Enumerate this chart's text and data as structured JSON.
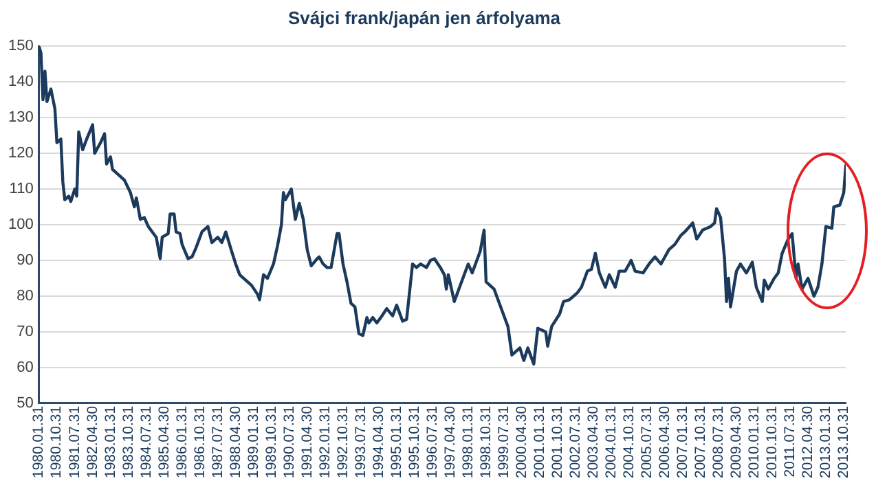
{
  "chart_data": {
    "type": "line",
    "title": "Svájci frank/japán jen árfolyama",
    "series": [
      {
        "color": "#1b3a5c",
        "x": [
          "1980-01",
          "1980-02",
          "1980-03",
          "1980-04",
          "1980-05",
          "1980-07",
          "1980-09",
          "1980-10",
          "1980-12",
          "1981-01",
          "1981-02",
          "1981-04",
          "1981-05",
          "1981-07",
          "1981-08",
          "1981-09",
          "1981-11",
          "1982-01",
          "1982-04",
          "1982-05",
          "1982-08",
          "1982-10",
          "1982-11",
          "1983-01",
          "1983-02",
          "1983-05",
          "1983-08",
          "1983-11",
          "1984-01",
          "1984-02",
          "1984-04",
          "1984-06",
          "1984-08",
          "1984-10",
          "1984-12",
          "1985-02",
          "1985-03",
          "1985-06",
          "1985-07",
          "1985-09",
          "1985-10",
          "1985-12",
          "1986-01",
          "1986-04",
          "1986-06",
          "1986-08",
          "1986-11",
          "1987-02",
          "1987-04",
          "1987-07",
          "1987-09",
          "1987-11",
          "1988-02",
          "1988-04",
          "1988-06",
          "1988-09",
          "1988-12",
          "1989-03",
          "1989-04",
          "1989-06",
          "1989-08",
          "1989-11",
          "1990-01",
          "1990-03",
          "1990-04",
          "1990-05",
          "1990-08",
          "1990-10",
          "1990-12",
          "1991-02",
          "1991-04",
          "1991-06",
          "1991-09",
          "1991-10",
          "1991-12",
          "1992-02",
          "1992-04",
          "1992-07",
          "1992-08",
          "1992-10",
          "1992-12",
          "1993-02",
          "1993-04",
          "1993-06",
          "1993-08",
          "1993-10",
          "1993-11",
          "1994-01",
          "1994-03",
          "1994-05",
          "1994-08",
          "1994-11",
          "1995-01",
          "1995-04",
          "1995-06",
          "1995-09",
          "1995-11",
          "1996-01",
          "1996-04",
          "1996-06",
          "1996-08",
          "1996-11",
          "1997-01",
          "1997-02",
          "1997-03",
          "1997-06",
          "1997-10",
          "1998-01",
          "1998-03",
          "1998-07",
          "1998-09",
          "1998-10",
          "1999-02",
          "1999-05",
          "1999-09",
          "1999-11",
          "2000-03",
          "2000-05",
          "2000-07",
          "2000-10",
          "2000-12",
          "2001-04",
          "2001-05",
          "2001-07",
          "2001-11",
          "2002-01",
          "2002-04",
          "2002-08",
          "2002-10",
          "2003-01",
          "2003-03",
          "2003-05",
          "2003-07",
          "2003-10",
          "2003-12",
          "2004-03",
          "2004-05",
          "2004-08",
          "2004-11",
          "2005-01",
          "2005-05",
          "2005-08",
          "2005-11",
          "2006-02",
          "2006-06",
          "2006-09",
          "2006-12",
          "2007-02",
          "2007-06",
          "2007-08",
          "2007-11",
          "2008-03",
          "2008-05",
          "2008-06",
          "2008-08",
          "2008-10",
          "2008-11",
          "2008-12",
          "2009-01",
          "2009-04",
          "2009-06",
          "2009-09",
          "2009-12",
          "2010-02",
          "2010-05",
          "2010-06",
          "2010-08",
          "2010-11",
          "2011-01",
          "2011-03",
          "2011-06",
          "2011-08",
          "2011-10",
          "2011-11",
          "2012-01",
          "2012-04",
          "2012-07",
          "2012-09",
          "2012-11",
          "2013-01",
          "2013-04",
          "2013-05",
          "2013-08",
          "2013-10",
          "2013-11"
        ],
        "values": [
          150,
          148,
          135,
          143,
          134.5,
          138,
          132.5,
          123,
          124,
          112,
          107,
          108,
          106.5,
          110,
          108,
          126,
          121,
          124,
          128,
          120,
          123,
          125.5,
          117,
          119,
          115.5,
          114,
          112.5,
          109,
          105,
          107.5,
          101.5,
          102,
          99.5,
          98,
          96.5,
          90.5,
          96.5,
          97.5,
          103,
          103,
          98,
          97.5,
          94.5,
          90.5,
          91,
          93.5,
          98,
          99.5,
          95,
          96.5,
          95,
          98,
          92.5,
          89,
          86,
          84.5,
          83,
          80.5,
          79,
          86,
          85,
          89,
          94,
          100,
          109,
          107,
          110,
          101.5,
          106,
          101.5,
          93,
          88.5,
          90.5,
          91,
          89,
          88,
          88,
          97.5,
          97.5,
          89,
          84,
          78,
          77,
          69.5,
          69,
          74,
          72.5,
          74,
          72.5,
          74,
          76.5,
          74.5,
          77.5,
          73,
          73.5,
          89,
          88,
          89,
          88,
          90,
          90.5,
          88,
          86,
          82,
          86,
          78.5,
          84.5,
          89,
          86.5,
          92.5,
          98.5,
          84,
          82,
          77.5,
          71.5,
          63.5,
          65.5,
          62,
          65.5,
          61,
          71,
          70,
          66,
          71.5,
          75,
          78.5,
          79,
          81,
          82.5,
          87,
          87.5,
          92,
          86.5,
          82.5,
          86,
          82.5,
          87,
          87,
          90,
          87,
          86.5,
          89,
          91,
          89,
          93,
          94.5,
          97,
          98,
          100.5,
          96,
          98.5,
          99.5,
          100.5,
          104.5,
          102,
          90.5,
          78.5,
          85,
          77,
          87,
          89,
          86.5,
          89.5,
          82.5,
          78.5,
          84.5,
          82,
          85,
          86.5,
          92,
          96,
          97.5,
          85,
          89,
          82,
          85,
          80,
          82.5,
          89,
          99.5,
          99,
          105,
          105.5,
          109,
          116.5
        ]
      }
    ],
    "xlim": [
      "1980-01",
      "2013-11"
    ],
    "xticks": [
      {
        "value": "1980-01",
        "label": "1980.01.31"
      },
      {
        "value": "1980-10",
        "label": "1980.10.31"
      },
      {
        "value": "1981-07",
        "label": "1981.07.31"
      },
      {
        "value": "1982-04",
        "label": "1982.04.30"
      },
      {
        "value": "1983-01",
        "label": "1983.01.31"
      },
      {
        "value": "1983-10",
        "label": "1983.10.31"
      },
      {
        "value": "1984-07",
        "label": "1984.07.31"
      },
      {
        "value": "1985-04",
        "label": "1985.04.30"
      },
      {
        "value": "1986-01",
        "label": "1986.01.31"
      },
      {
        "value": "1986-10",
        "label": "1986.10.31"
      },
      {
        "value": "1987-07",
        "label": "1987.07.31"
      },
      {
        "value": "1988-04",
        "label": "1988.04.30"
      },
      {
        "value": "1989-01",
        "label": "1989.01.31"
      },
      {
        "value": "1989-10",
        "label": "1989.10.31"
      },
      {
        "value": "1990-07",
        "label": "1990.07.31"
      },
      {
        "value": "1991-04",
        "label": "1991.04.30"
      },
      {
        "value": "1992-01",
        "label": "1992.01.31"
      },
      {
        "value": "1992-10",
        "label": "1992.10.31"
      },
      {
        "value": "1993-07",
        "label": "1993.07.31"
      },
      {
        "value": "1994-04",
        "label": "1994.04.30"
      },
      {
        "value": "1995-01",
        "label": "1995.01.31"
      },
      {
        "value": "1995-10",
        "label": "1995.10.31"
      },
      {
        "value": "1996-07",
        "label": "1996.07.31"
      },
      {
        "value": "1997-04",
        "label": "1997.04.30"
      },
      {
        "value": "1998-01",
        "label": "1998.01.31"
      },
      {
        "value": "1998-10",
        "label": "1998.10.31"
      },
      {
        "value": "1999-07",
        "label": "1999.07.31"
      },
      {
        "value": "2000-04",
        "label": "2000.04.30"
      },
      {
        "value": "2001-01",
        "label": "2001.01.31"
      },
      {
        "value": "2001-10",
        "label": "2001.10.31"
      },
      {
        "value": "2002-07",
        "label": "2002.07.31"
      },
      {
        "value": "2003-04",
        "label": "2003.04.30"
      },
      {
        "value": "2004-01",
        "label": "2004.01.31"
      },
      {
        "value": "2004-10",
        "label": "2004.10.31"
      },
      {
        "value": "2005-07",
        "label": "2005.07.31"
      },
      {
        "value": "2006-04",
        "label": "2006.04.30"
      },
      {
        "value": "2007-01",
        "label": "2007.01.31"
      },
      {
        "value": "2007-10",
        "label": "2007.10.31"
      },
      {
        "value": "2008-07",
        "label": "2008.07.31"
      },
      {
        "value": "2009-04",
        "label": "2009.04.30"
      },
      {
        "value": "2010-01",
        "label": "2010.01.31"
      },
      {
        "value": "2010-10",
        "label": "2010.10.31"
      },
      {
        "value": "2011-07",
        "label": "2011.07.31"
      },
      {
        "value": "2012-04",
        "label": "2012.04.30"
      },
      {
        "value": "2013-01",
        "label": "2013.01.31"
      },
      {
        "value": "2013-10",
        "label": "2013.10.31"
      }
    ],
    "ylim": [
      50,
      150
    ],
    "yticks": [
      50,
      60,
      70,
      80,
      90,
      100,
      110,
      120,
      130,
      140,
      150
    ],
    "grid": "y",
    "legend": false,
    "marker": "none",
    "line_style": "solid"
  }
}
